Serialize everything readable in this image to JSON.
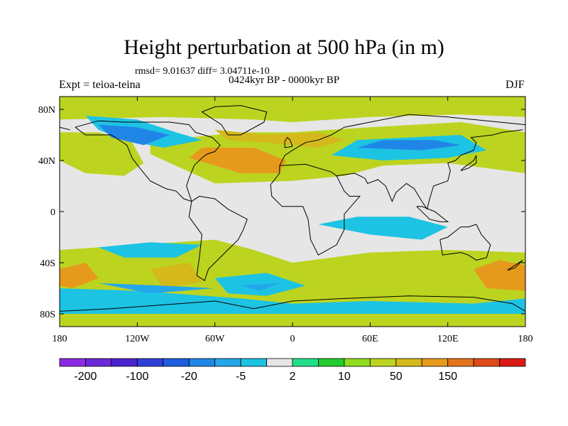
{
  "chart_data": {
    "type": "heatmap",
    "title": "Height perturbation at 500 hPa (in m)",
    "stats_label": "rmsd= 9.01637  diff= 3.04711e-10",
    "period_label": "0424kyr BP - 0000kyr BP",
    "left_label": "Expt = teioa-teina",
    "right_label": "DJF",
    "x_ticks": [
      "180",
      "120W",
      "60W",
      "0",
      "60E",
      "120E",
      "180"
    ],
    "x_tick_values": [
      -180,
      -120,
      -60,
      0,
      60,
      120,
      180
    ],
    "y_ticks": [
      "80N",
      "40N",
      "0",
      "40S",
      "80S"
    ],
    "y_tick_values": [
      80,
      40,
      0,
      -40,
      -80
    ],
    "xlim": [
      -180,
      180
    ],
    "ylim": [
      -90,
      90
    ],
    "colorbar": {
      "labels": [
        "-200",
        "-100",
        "-20",
        "-5",
        "2",
        "10",
        "50",
        "150"
      ],
      "colors": [
        "#8a2be2",
        "#6a28d8",
        "#4b23cc",
        "#2f3fd6",
        "#1e5ee0",
        "#1f86e8",
        "#22a7ea",
        "#1dc3e3",
        "#e6e6e6",
        "#22e08a",
        "#22cc2e",
        "#90dc22",
        "#bcd420",
        "#d4b81c",
        "#e69a1c",
        "#e4741a",
        "#e04a18",
        "#dc1a14"
      ]
    },
    "regions": [
      {
        "level": 12,
        "points": [
          [
            -180,
            72
          ],
          [
            -100,
            74
          ],
          [
            -30,
            72
          ],
          [
            0,
            70
          ],
          [
            60,
            74
          ],
          [
            130,
            76
          ],
          [
            180,
            74
          ],
          [
            180,
            90
          ],
          [
            -180,
            90
          ]
        ]
      },
      {
        "level": 12,
        "points": [
          [
            -180,
            40
          ],
          [
            -160,
            30
          ],
          [
            -130,
            28
          ],
          [
            -115,
            38
          ],
          [
            -125,
            56
          ],
          [
            -150,
            62
          ],
          [
            -180,
            62
          ]
        ]
      },
      {
        "level": 12,
        "points": [
          [
            -110,
            45
          ],
          [
            -60,
            22
          ],
          [
            0,
            24
          ],
          [
            40,
            28
          ],
          [
            70,
            36
          ],
          [
            120,
            38
          ],
          [
            180,
            30
          ],
          [
            180,
            62
          ],
          [
            130,
            70
          ],
          [
            60,
            66
          ],
          [
            0,
            62
          ],
          [
            -40,
            62
          ],
          [
            -80,
            58
          ],
          [
            -110,
            58
          ]
        ]
      },
      {
        "level": 12,
        "points": [
          [
            -180,
            -30
          ],
          [
            -120,
            -26
          ],
          [
            -60,
            -22
          ],
          [
            -30,
            -30
          ],
          [
            0,
            -40
          ],
          [
            60,
            -32
          ],
          [
            120,
            -30
          ],
          [
            180,
            -32
          ],
          [
            180,
            -90
          ],
          [
            -180,
            -90
          ]
        ]
      },
      {
        "level": 14,
        "points": [
          [
            -80,
            42
          ],
          [
            -40,
            30
          ],
          [
            -10,
            30
          ],
          [
            -5,
            40
          ],
          [
            -30,
            50
          ],
          [
            -70,
            50
          ]
        ]
      },
      {
        "level": 13,
        "points": [
          [
            -60,
            64
          ],
          [
            -20,
            60
          ],
          [
            20,
            62
          ],
          [
            40,
            56
          ],
          [
            20,
            50
          ],
          [
            -20,
            54
          ],
          [
            -50,
            56
          ]
        ]
      },
      {
        "level": 14,
        "points": [
          [
            -180,
            -45
          ],
          [
            -160,
            -40
          ],
          [
            -150,
            -52
          ],
          [
            -170,
            -60
          ],
          [
            -180,
            -58
          ]
        ]
      },
      {
        "level": 14,
        "points": [
          [
            140,
            -45
          ],
          [
            160,
            -38
          ],
          [
            180,
            -42
          ],
          [
            180,
            -62
          ],
          [
            150,
            -60
          ]
        ]
      },
      {
        "level": 13,
        "points": [
          [
            -110,
            -45
          ],
          [
            -80,
            -40
          ],
          [
            -70,
            -55
          ],
          [
            -100,
            -60
          ]
        ]
      },
      {
        "level": 7,
        "points": [
          [
            -160,
            75
          ],
          [
            -120,
            72
          ],
          [
            -90,
            62
          ],
          [
            -70,
            56
          ],
          [
            -100,
            50
          ],
          [
            -130,
            56
          ],
          [
            -150,
            64
          ]
        ]
      },
      {
        "level": 7,
        "points": [
          [
            30,
            44
          ],
          [
            70,
            40
          ],
          [
            120,
            42
          ],
          [
            150,
            48
          ],
          [
            130,
            60
          ],
          [
            90,
            58
          ],
          [
            50,
            56
          ]
        ]
      },
      {
        "level": 7,
        "points": [
          [
            -60,
            -52
          ],
          [
            -20,
            -48
          ],
          [
            10,
            -58
          ],
          [
            -20,
            -66
          ],
          [
            -50,
            -64
          ]
        ]
      },
      {
        "level": 7,
        "points": [
          [
            -180,
            -60
          ],
          [
            -120,
            -62
          ],
          [
            -40,
            -68
          ],
          [
            0,
            -72
          ],
          [
            60,
            -70
          ],
          [
            140,
            -72
          ],
          [
            180,
            -68
          ],
          [
            180,
            -80
          ],
          [
            -180,
            -80
          ]
        ]
      },
      {
        "level": 7,
        "points": [
          [
            20,
            -10
          ],
          [
            60,
            -18
          ],
          [
            100,
            -22
          ],
          [
            120,
            -12
          ],
          [
            90,
            -4
          ],
          [
            50,
            -4
          ]
        ]
      },
      {
        "level": 7,
        "points": [
          [
            -150,
            -28
          ],
          [
            -110,
            -24
          ],
          [
            -70,
            -26
          ],
          [
            -90,
            -36
          ],
          [
            -130,
            -36
          ]
        ]
      },
      {
        "level": 5,
        "points": [
          [
            -150,
            68
          ],
          [
            -120,
            66
          ],
          [
            -95,
            60
          ],
          [
            -115,
            52
          ],
          [
            -140,
            58
          ]
        ]
      },
      {
        "level": 5,
        "points": [
          [
            50,
            50
          ],
          [
            100,
            48
          ],
          [
            130,
            52
          ],
          [
            110,
            56
          ],
          [
            70,
            56
          ]
        ]
      },
      {
        "level": 6,
        "points": [
          [
            -40,
            -58
          ],
          [
            -10,
            -56
          ],
          [
            -25,
            -62
          ]
        ]
      },
      {
        "level": 6,
        "points": [
          [
            -150,
            -56
          ],
          [
            -100,
            -58
          ],
          [
            -60,
            -60
          ],
          [
            -110,
            -64
          ]
        ]
      }
    ]
  }
}
